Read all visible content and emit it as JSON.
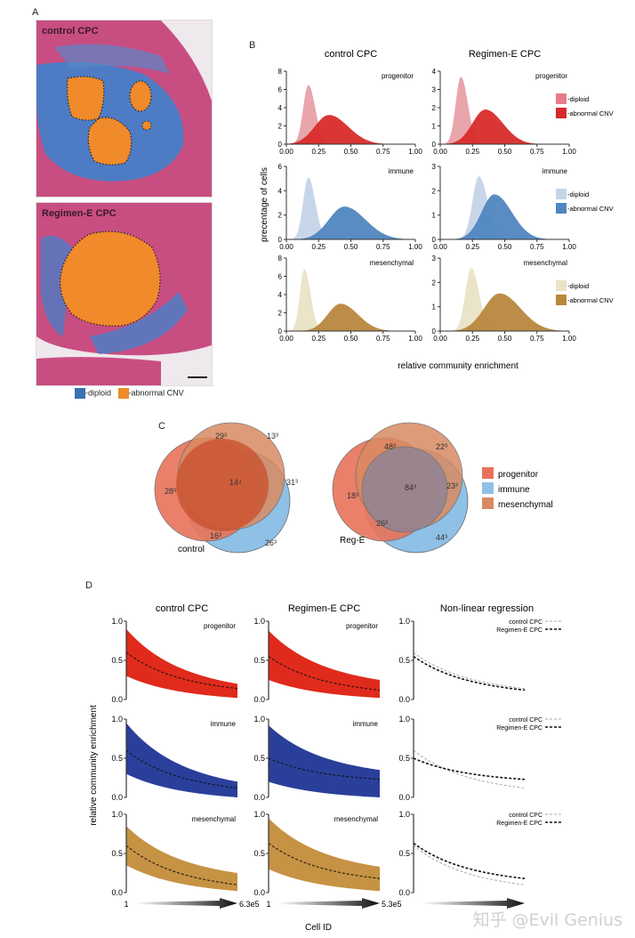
{
  "panels": {
    "A": {
      "letter": "A",
      "images": [
        {
          "label": "control CPC"
        },
        {
          "label": "Regimen-E CPC"
        }
      ],
      "legend": [
        {
          "label": "-diploid",
          "color": "#3d6fb4"
        },
        {
          "label": "-abnormal CNV",
          "color": "#f08a2a"
        }
      ]
    },
    "B": {
      "letter": "B"
    },
    "C": {
      "letter": "C"
    },
    "D": {
      "letter": "D"
    }
  },
  "chart_data": [
    {
      "id": "B",
      "type": "area",
      "column_titles": [
        "control CPC",
        "Regimen-E CPC"
      ],
      "ylabel": "precentage  of cells",
      "xlabel": "relative community enrichment",
      "xlim": [
        0,
        1
      ],
      "xticks": [
        "0.00",
        "0.25",
        "0.50",
        "0.75",
        "1.00"
      ],
      "rows": [
        {
          "name": "progenitor",
          "colors": {
            "diploid": "#e8a0a8",
            "abnormal": "#d92b2b"
          },
          "legend": [
            "-diploid",
            "-abnormal CNV"
          ],
          "legend_colors": [
            "#e87a8a",
            "#d42a2a"
          ],
          "panels": [
            {
              "ylim": [
                0,
                8
              ],
              "yticks": [
                "0",
                "2",
                "4",
                "6",
                "8"
              ],
              "diploid": {
                "peak_x": 0.17,
                "peak_y": 6.5,
                "width": 0.04
              },
              "abnormal": {
                "peak_x": 0.33,
                "peak_y": 3.2,
                "width": 0.11
              }
            },
            {
              "ylim": [
                0,
                4
              ],
              "yticks": [
                "0",
                "1",
                "2",
                "3",
                "4"
              ],
              "diploid": {
                "peak_x": 0.16,
                "peak_y": 3.7,
                "width": 0.04
              },
              "abnormal": {
                "peak_x": 0.35,
                "peak_y": 1.9,
                "width": 0.1
              }
            }
          ]
        },
        {
          "name": "immune",
          "colors": {
            "diploid": "#c5d4e8",
            "abnormal": "#4f86c0"
          },
          "legend": [
            "-diploid",
            "-abnormal CNV"
          ],
          "legend_colors": [
            "#c5d4e8",
            "#4f86c0"
          ],
          "panels": [
            {
              "ylim": [
                0,
                6
              ],
              "yticks": [
                "0",
                "2",
                "4",
                "6"
              ],
              "diploid": {
                "peak_x": 0.17,
                "peak_y": 5.1,
                "width": 0.04
              },
              "abnormal": {
                "peak_x": 0.45,
                "peak_y": 2.7,
                "width": 0.12
              }
            },
            {
              "ylim": [
                0,
                3
              ],
              "yticks": [
                "0",
                "1",
                "2",
                "3"
              ],
              "diploid": {
                "peak_x": 0.3,
                "peak_y": 2.6,
                "width": 0.05
              },
              "abnormal": {
                "peak_x": 0.42,
                "peak_y": 1.85,
                "width": 0.1
              }
            }
          ]
        },
        {
          "name": "mesenchymal",
          "colors": {
            "diploid": "#e9e3c6",
            "abnormal": "#b8873e"
          },
          "legend": [
            "-diploid",
            "-abnormal CNV"
          ],
          "legend_colors": [
            "#e9e3c6",
            "#b8873e"
          ],
          "panels": [
            {
              "ylim": [
                0,
                8
              ],
              "yticks": [
                "0",
                "2",
                "4",
                "6",
                "8"
              ],
              "diploid": {
                "peak_x": 0.14,
                "peak_y": 6.8,
                "width": 0.035
              },
              "abnormal": {
                "peak_x": 0.42,
                "peak_y": 3.0,
                "width": 0.1
              }
            },
            {
              "ylim": [
                0,
                3
              ],
              "yticks": [
                "0",
                "1",
                "2",
                "3"
              ],
              "diploid": {
                "peak_x": 0.24,
                "peak_y": 2.6,
                "width": 0.045
              },
              "abnormal": {
                "peak_x": 0.46,
                "peak_y": 1.55,
                "width": 0.12
              }
            }
          ]
        }
      ]
    },
    {
      "id": "C",
      "type": "venn",
      "sets": [
        {
          "name": "progenitor",
          "color": "#e8735a"
        },
        {
          "name": "immune",
          "color": "#8fc0e6"
        },
        {
          "name": "mesenchymal",
          "color": "#d98a62"
        }
      ],
      "diagrams": [
        {
          "label": "control",
          "regions": {
            "progenitor_only": "28³",
            "prog_mes": "29³",
            "mes_only": "13³",
            "all": "14⁴",
            "mes_imm": "31³",
            "prog_imm": "16³",
            "imm_only": "26³"
          }
        },
        {
          "label": "Reg-E",
          "regions": {
            "progenitor_only": "18³",
            "prog_mes": "48³",
            "mes_only": "22³",
            "all": "84³",
            "mes_imm": "23³",
            "prog_imm": "26³",
            "imm_only": "44³"
          }
        }
      ]
    },
    {
      "id": "D",
      "type": "scatter",
      "column_titles": [
        "control CPC",
        "Regimen-E CPC",
        "Non-linear regression"
      ],
      "ylabel": "relative community enrichment",
      "xlabel": "Cell ID",
      "ylim": [
        0,
        1
      ],
      "yticks": [
        "0.0",
        "0.5",
        "1.0"
      ],
      "x_ranges": [
        [
          "1",
          "6.3e5"
        ],
        [
          "1",
          "5.3e5"
        ],
        [
          "",
          ""
        ]
      ],
      "regression_legend": [
        "control CPC",
        "Regimen-E CPC"
      ],
      "rows": [
        {
          "name": "progenitor",
          "color": "#e02a1c",
          "control": {
            "start": 0.6,
            "end": 0.14,
            "upper_start": 0.9,
            "upper_end": 0.2,
            "lower_start": 0.3,
            "lower_end": 0.02
          },
          "regE": {
            "start": 0.55,
            "end": 0.12,
            "upper_start": 0.88,
            "upper_end": 0.25,
            "lower_start": 0.25,
            "lower_end": 0.02
          }
        },
        {
          "name": "immune",
          "color": "#2a3f9a",
          "control": {
            "start": 0.6,
            "end": 0.12,
            "upper_start": 0.95,
            "upper_end": 0.2,
            "lower_start": 0.3,
            "lower_end": 0.0
          },
          "regE": {
            "start": 0.5,
            "end": 0.23,
            "upper_start": 0.92,
            "upper_end": 0.35,
            "lower_start": 0.2,
            "lower_end": 0.0
          }
        },
        {
          "name": "mesenchymal",
          "color": "#c69243",
          "control": {
            "start": 0.6,
            "end": 0.1,
            "upper_start": 0.85,
            "upper_end": 0.25,
            "lower_start": 0.35,
            "lower_end": 0.02
          },
          "regE": {
            "start": 0.63,
            "end": 0.18,
            "upper_start": 0.95,
            "upper_end": 0.33,
            "lower_start": 0.3,
            "lower_end": 0.02
          }
        }
      ]
    }
  ],
  "watermark": "知乎 @Evil Genius"
}
